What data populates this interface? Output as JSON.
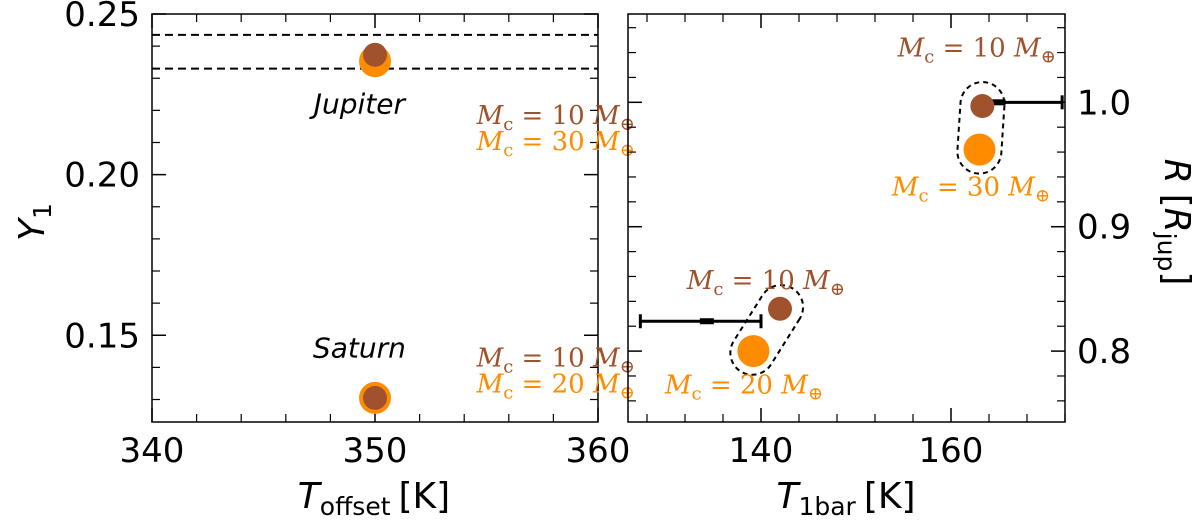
{
  "colors": {
    "mc10": "#a0522d",
    "mc_high": "#ff8c00",
    "frame": "#000000"
  },
  "chart_data": [
    {
      "type": "scatter",
      "title": "",
      "xlabel": {
        "main": "T",
        "sub": "offset",
        "unit": "[K]"
      },
      "ylabel": {
        "main": "Y",
        "sub": "1"
      },
      "xlim": [
        340,
        360
      ],
      "ylim": [
        0.123,
        0.25
      ],
      "xticks": [
        "340",
        "350",
        "360"
      ],
      "xtick_values": [
        340,
        350,
        360
      ],
      "yticks": [
        "0.15",
        "0.20",
        "0.25"
      ],
      "ytick_values": [
        0.15,
        0.2,
        0.25
      ],
      "hlines": [
        0.233,
        0.2435
      ],
      "labels": [
        {
          "text": "Jupiter",
          "x": 349.3,
          "y": 0.219
        },
        {
          "text": "Saturn",
          "x": 349.3,
          "y": 0.143
        }
      ],
      "series": [
        {
          "name": "M_c = 30 M_⊕ (Jupiter), 20 M_⊕ (Saturn)",
          "color": "mc_high",
          "points": [
            {
              "x": 350,
              "y": 0.2353
            },
            {
              "x": 350,
              "y": 0.1305
            }
          ]
        },
        {
          "name": "M_c = 10 M_⊕",
          "color": "mc10",
          "points": [
            {
              "x": 350,
              "y": 0.2373
            },
            {
              "x": 350,
              "y": 0.1305
            }
          ]
        }
      ],
      "annotations": [
        {
          "mass": "10",
          "color": "mc10",
          "x": 358.1,
          "y": 0.2157
        },
        {
          "mass": "30",
          "color": "mc_high",
          "x": 358.1,
          "y": 0.2077
        },
        {
          "mass": "10",
          "color": "mc10",
          "x": 358.1,
          "y": 0.1402
        },
        {
          "mass": "20",
          "color": "mc_high",
          "x": 358.1,
          "y": 0.1322
        }
      ]
    },
    {
      "type": "scatter",
      "title": "",
      "xlabel": {
        "main": "T",
        "sub": "1bar",
        "unit": "[K]"
      },
      "ylabel": {
        "main": "R",
        "bracket_main": "R",
        "bracket_sub": "jup"
      },
      "xlim": [
        126,
        172
      ],
      "ylim": [
        0.743,
        1.071
      ],
      "xticks": [
        "140",
        "160"
      ],
      "xtick_values": [
        140,
        160
      ],
      "yticks": [
        "0.8",
        "0.9",
        "1.0"
      ],
      "ytick_values": [
        0.8,
        0.9,
        1.0
      ],
      "series": [
        {
          "name": "M_c = 10 M_⊕",
          "color": "mc10",
          "points": [
            {
              "x": 142.0,
              "y": 0.834
            },
            {
              "x": 163.3,
              "y": 0.997
            }
          ]
        },
        {
          "name": "M_c = 20 M_⊕ / 30 M_⊕",
          "color": "mc_high",
          "points": [
            {
              "x": 139.2,
              "y": 0.8
            },
            {
              "x": 163.0,
              "y": 0.962
            }
          ]
        }
      ],
      "errorbars": [
        {
          "x": 134.3,
          "y": 0.824,
          "xmin": 127.3,
          "xmax": 140.0
        },
        {
          "x": 165.0,
          "y": 1.0,
          "xmin": 163.3,
          "xmax": 171.7
        }
      ],
      "groupings": [
        {
          "points": [
            [
              142.0,
              0.834
            ],
            [
              139.2,
              0.8
            ]
          ]
        },
        {
          "points": [
            [
              163.3,
              0.997
            ],
            [
              163.0,
              0.962
            ]
          ]
        }
      ],
      "annotations": [
        {
          "mass": "10",
          "color": "mc10",
          "x": 140.5,
          "y": 0.85
        },
        {
          "mass": "20",
          "color": "mc_high",
          "x": 138.2,
          "y": 0.766
        },
        {
          "mass": "10",
          "color": "mc10",
          "x": 162.7,
          "y": 1.037
        },
        {
          "mass": "30",
          "color": "mc_high",
          "x": 162.1,
          "y": 0.925
        }
      ]
    }
  ]
}
